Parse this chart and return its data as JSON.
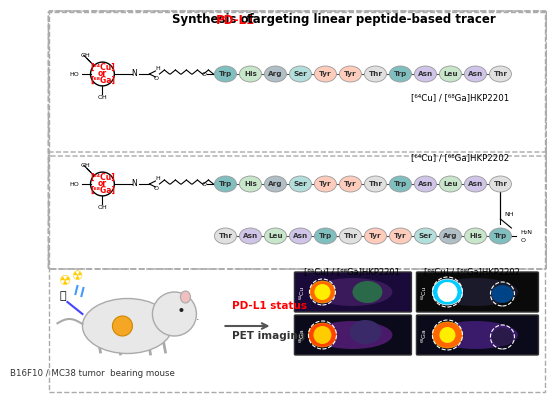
{
  "title_text": "Synthesis of ",
  "title_highlight": "PD-L1",
  "title_suffix": " targeting linear peptide-based tracer",
  "background_color": "#ffffff",
  "border_color": "#888888",
  "tracer1_label": "[⁶⁴Cu] / [⁶⁸Ga]HKP2201",
  "tracer2_label": "[⁶⁴Cu] / [⁶⁸Ga]HKP2202",
  "tracer1_label_bottom": "[⁶⁴Cu] / [⁶⁸Ga]HKP2201",
  "tracer2_label_bottom": "[⁶⁴Cu] / [⁶⁸Ga]HKP2202",
  "peptide1": [
    "Trp",
    "His",
    "Arg",
    "Ser",
    "Tyr",
    "Tyr",
    "Thr",
    "Trp",
    "Asn",
    "Leu",
    "Asn",
    "Thr"
  ],
  "peptide2_top": [
    "Trp",
    "His",
    "Arg",
    "Ser",
    "Tyr",
    "Tyr",
    "Thr",
    "Trp",
    "Asn",
    "Leu",
    "Asn",
    "Thr"
  ],
  "peptide2_bot": [
    "Thr",
    "Asn",
    "Leu",
    "Asn",
    "Trp",
    "Thr",
    "Tyr",
    "Tyr",
    "Ser",
    "Arg",
    "His",
    "Trp"
  ],
  "aa_colors": {
    "Trp": "#7fbfbf",
    "His": "#c8e6c9",
    "Arg": "#b0bec5",
    "Ser": "#b2dfdb",
    "Tyr": "#ffccbc",
    "Thr": "#e0e0e0",
    "Asn": "#d1c4e9",
    "Leu": "#c8e6c9"
  },
  "chelator_color": "#ff0000",
  "chelator_text1": "[⁶⁴Cu]",
  "chelator_text2": "or",
  "chelator_text3": "[⁶⁸Ga]",
  "mouse_tumor_color": "#f5a623",
  "pdl1_color": "#ff0000",
  "arrow_color": "#888888",
  "pdl1_status_color": "#ff0000",
  "section_border": "#888888",
  "bottom_label": "B16F10 / MC38 tumor  bearing mouse",
  "pet_label": "PET imaging"
}
